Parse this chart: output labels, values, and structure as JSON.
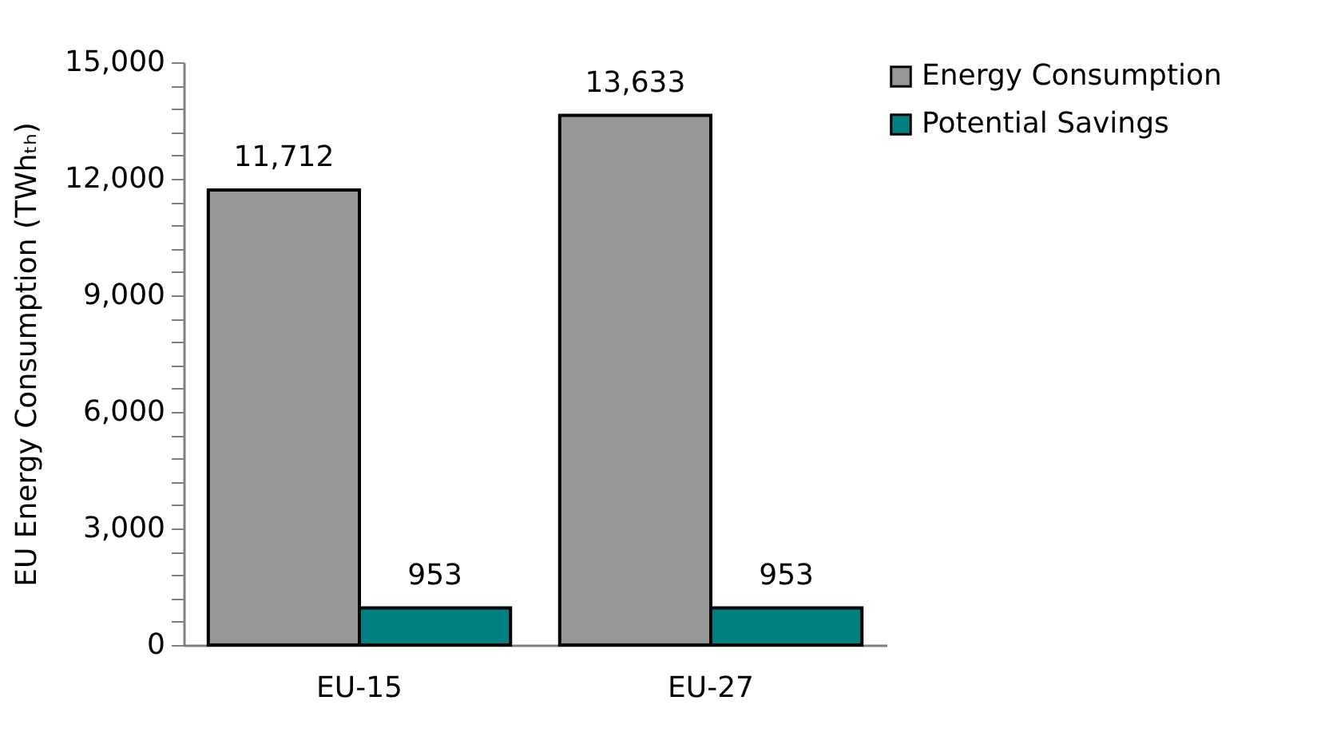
{
  "chart_data": {
    "type": "bar",
    "ylabel": "EU Energy Consumption (TWhₜₕ)",
    "categories": [
      "EU-15",
      "EU-27"
    ],
    "series": [
      {
        "name": "Energy Consumption",
        "color": "#969696",
        "values": [
          11712,
          13633
        ],
        "value_labels": [
          "11,712",
          "13,633"
        ]
      },
      {
        "name": "Potential Savings",
        "color": "#008080",
        "values": [
          953,
          953
        ],
        "value_labels": [
          "953",
          "953"
        ]
      }
    ],
    "ylim": [
      0,
      15000
    ],
    "yticks": [
      0,
      {
        "value": 600,
        "label": null
      },
      {
        "value": 1200,
        "label": null
      },
      {
        "value": 1800,
        "label": null
      },
      {
        "value": 2400,
        "label": null
      },
      {
        "value": 3000,
        "label": "3,000"
      },
      {
        "value": 3600,
        "label": null
      },
      {
        "value": 4200,
        "label": null
      },
      {
        "value": 4800,
        "label": null
      },
      {
        "value": 5400,
        "label": null
      },
      {
        "value": 6000,
        "label": "6,000"
      },
      {
        "value": 6600,
        "label": null
      },
      {
        "value": 7200,
        "label": null
      },
      {
        "value": 7800,
        "label": null
      },
      {
        "value": 8400,
        "label": null
      },
      {
        "value": 9000,
        "label": "9,000"
      },
      {
        "value": 9600,
        "label": null
      },
      {
        "value": 10200,
        "label": null
      },
      {
        "value": 10800,
        "label": null
      },
      {
        "value": 11400,
        "label": null
      },
      {
        "value": 12000,
        "label": "12,000"
      },
      {
        "value": 12600,
        "label": null
      },
      {
        "value": 13200,
        "label": null
      },
      {
        "value": 13800,
        "label": null
      },
      {
        "value": 14400,
        "label": null
      },
      {
        "value": 15000,
        "label": "15,000"
      }
    ],
    "grid": false,
    "legend": "right"
  }
}
